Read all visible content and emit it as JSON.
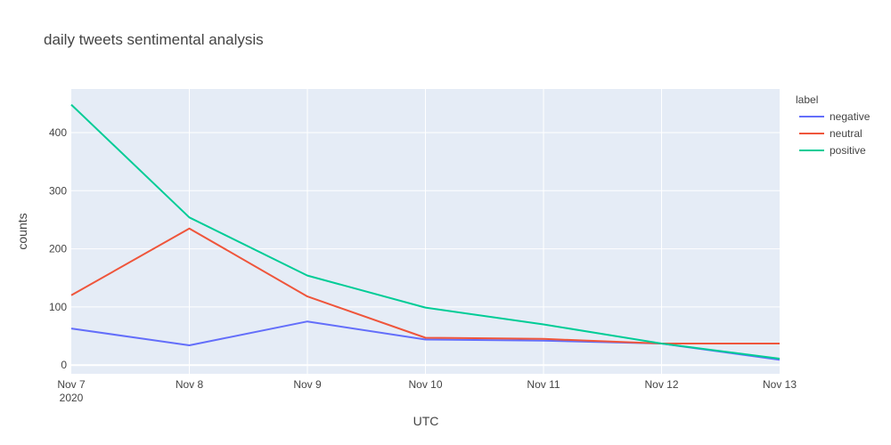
{
  "chart_data": {
    "type": "line",
    "title": "daily tweets sentimental analysis",
    "xlabel": "UTC",
    "ylabel": "counts",
    "x": [
      "Nov 7",
      "Nov 8",
      "Nov 9",
      "Nov 10",
      "Nov 11",
      "Nov 12",
      "Nov 13"
    ],
    "x_year_label": "2020",
    "yticks": [
      0,
      100,
      200,
      300,
      400
    ],
    "ylim": [
      -15,
      475
    ],
    "legend": {
      "title": "label",
      "position": "right"
    },
    "grid": true,
    "series": [
      {
        "name": "negative",
        "color": "#636efa",
        "values": [
          63,
          34,
          75,
          44,
          42,
          37,
          9
        ]
      },
      {
        "name": "neutral",
        "color": "#ef553b",
        "values": [
          120,
          235,
          118,
          47,
          45,
          37,
          37
        ]
      },
      {
        "name": "positive",
        "color": "#00cc96",
        "values": [
          448,
          254,
          154,
          99,
          70,
          37,
          11
        ]
      }
    ]
  },
  "colors": {
    "plot_background": "#e5ecf6",
    "gridline": "#ffffff",
    "text": "#444444"
  }
}
